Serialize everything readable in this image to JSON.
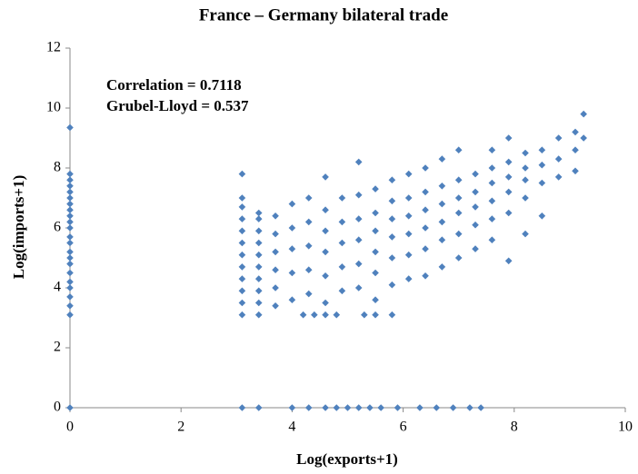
{
  "chart_data": {
    "type": "scatter",
    "title": "France – Germany bilateral trade",
    "xlabel": "Log(exports+1)",
    "ylabel": "Log(imports+1)",
    "annotations": [
      "Correlation = 0.7118",
      "Grubel-Lloyd = 0.537"
    ],
    "color": "#4f81bd",
    "xlim": [
      0,
      10
    ],
    "xticks": [
      0,
      2,
      4,
      6,
      8,
      10
    ],
    "ylim": [
      0,
      12
    ],
    "yticks": [
      0,
      2,
      4,
      6,
      8,
      10,
      12
    ],
    "grid": false,
    "x": [
      0,
      0,
      0,
      0,
      0,
      0,
      0,
      0,
      0,
      0,
      0,
      0,
      0,
      0,
      0,
      0,
      0,
      0,
      0,
      0,
      0,
      0,
      0,
      3.1,
      3.1,
      3.1,
      3.1,
      3.1,
      3.1,
      3.1,
      3.1,
      3.1,
      3.1,
      3.1,
      3.1,
      3.4,
      3.4,
      3.4,
      3.4,
      3.4,
      3.4,
      3.4,
      3.4,
      3.4,
      3.4,
      3.7,
      3.7,
      3.7,
      3.7,
      3.7,
      3.7,
      3.1,
      3.4,
      4.0,
      4.3,
      4.6,
      4.8,
      5.0,
      5.2,
      5.4,
      5.6,
      5.9,
      6.3,
      6.6,
      6.9,
      7.2,
      7.4,
      4.2,
      4.4,
      4.6,
      4.8,
      5.3,
      5.5,
      5.8,
      4.0,
      4.0,
      4.0,
      4.0,
      4.0,
      4.3,
      4.3,
      4.3,
      4.3,
      4.3,
      4.6,
      4.6,
      4.6,
      4.6,
      4.6,
      4.6,
      4.9,
      4.9,
      4.9,
      4.9,
      4.9,
      5.2,
      5.2,
      5.2,
      5.2,
      5.2,
      5.2,
      5.5,
      5.5,
      5.5,
      5.5,
      5.5,
      5.5,
      5.8,
      5.8,
      5.8,
      5.8,
      5.8,
      5.8,
      6.1,
      6.1,
      6.1,
      6.1,
      6.1,
      6.1,
      6.4,
      6.4,
      6.4,
      6.4,
      6.4,
      6.4,
      6.7,
      6.7,
      6.7,
      6.7,
      6.7,
      6.7,
      7.0,
      7.0,
      7.0,
      7.0,
      7.0,
      7.0,
      7.3,
      7.3,
      7.3,
      7.3,
      7.3,
      7.6,
      7.6,
      7.6,
      7.6,
      7.6,
      7.6,
      7.9,
      7.9,
      7.9,
      7.9,
      7.9,
      7.9,
      8.2,
      8.2,
      8.2,
      8.2,
      8.2,
      8.5,
      8.5,
      8.5,
      8.5,
      8.8,
      8.8,
      8.8,
      9.1,
      9.1,
      9.1,
      9.25,
      9.25
    ],
    "values": [
      3.1,
      3.4,
      3.7,
      4.0,
      4.2,
      4.5,
      4.8,
      5.0,
      5.2,
      5.5,
      5.7,
      6.0,
      6.2,
      6.4,
      6.6,
      6.8,
      7.0,
      7.2,
      7.4,
      7.6,
      7.8,
      9.35,
      0,
      3.1,
      3.5,
      3.9,
      4.3,
      4.7,
      5.1,
      5.5,
      5.9,
      6.3,
      6.7,
      7.0,
      7.8,
      3.1,
      3.5,
      3.9,
      4.3,
      4.7,
      5.1,
      5.5,
      5.9,
      6.3,
      6.5,
      3.4,
      4.0,
      4.6,
      5.2,
      5.8,
      6.4,
      0,
      0,
      0,
      0,
      0,
      0,
      0,
      0,
      0,
      0,
      0,
      0,
      0,
      0,
      0,
      0,
      3.1,
      3.1,
      3.1,
      3.1,
      3.1,
      3.1,
      3.1,
      3.6,
      4.5,
      5.3,
      6.0,
      6.8,
      3.8,
      4.6,
      5.4,
      6.2,
      7.0,
      3.5,
      4.4,
      5.2,
      5.9,
      6.6,
      7.7,
      3.9,
      4.7,
      5.5,
      6.2,
      7.0,
      4.0,
      4.8,
      5.6,
      6.3,
      7.1,
      8.2,
      3.6,
      4.5,
      5.2,
      5.9,
      6.5,
      7.3,
      4.1,
      5.0,
      5.7,
      6.3,
      6.9,
      7.6,
      4.3,
      5.1,
      5.8,
      6.4,
      7.0,
      7.8,
      4.4,
      5.3,
      6.0,
      6.6,
      7.2,
      8.0,
      4.7,
      5.6,
      6.2,
      6.8,
      7.4,
      8.3,
      5.0,
      5.8,
      6.5,
      7.0,
      7.6,
      8.6,
      5.3,
      6.1,
      6.7,
      7.2,
      7.8,
      5.6,
      6.3,
      6.9,
      7.5,
      8.0,
      8.6,
      4.9,
      6.5,
      7.2,
      7.7,
      8.2,
      9.0,
      5.8,
      7.0,
      7.6,
      8.0,
      8.5,
      6.4,
      7.5,
      8.1,
      8.6,
      7.7,
      8.3,
      9.0,
      7.9,
      8.6,
      9.2,
      9.0,
      9.8
    ]
  }
}
